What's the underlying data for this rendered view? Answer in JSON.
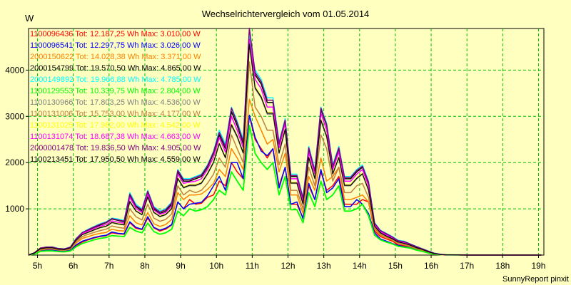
{
  "chart_data": {
    "type": "line",
    "title": "Wechselrichtervergleich vom 01.05.2014",
    "ylabel": "W",
    "footer": "SunnyReport pinxit",
    "x_ticks": [
      "5h",
      "6h",
      "7h",
      "8h",
      "9h",
      "10h",
      "11h",
      "12h",
      "13h",
      "14h",
      "15h",
      "16h",
      "17h",
      "18h",
      "19h"
    ],
    "y_ticks": [
      1000,
      2000,
      3000,
      4000
    ],
    "xlim": [
      4.75,
      19.15
    ],
    "ylim": [
      0,
      4900
    ],
    "grid": true,
    "legend_position": "top-left",
    "x_hours": [
      4.75,
      4.92,
      5.08,
      5.25,
      5.42,
      5.58,
      5.75,
      5.92,
      6.08,
      6.25,
      6.42,
      6.58,
      6.75,
      6.92,
      7.08,
      7.25,
      7.42,
      7.58,
      7.75,
      7.92,
      8.08,
      8.25,
      8.42,
      8.58,
      8.75,
      8.92,
      9.08,
      9.25,
      9.42,
      9.58,
      9.75,
      9.92,
      10.08,
      10.25,
      10.42,
      10.58,
      10.75,
      10.92,
      11.08,
      11.25,
      11.42,
      11.58,
      11.75,
      11.92,
      12.08,
      12.25,
      12.42,
      12.58,
      12.75,
      12.92,
      13.08,
      13.25,
      13.42,
      13.58,
      13.75,
      13.92,
      14.08,
      14.25,
      14.42,
      14.58,
      14.75,
      14.92,
      15.08,
      15.25,
      15.42,
      15.58,
      15.75,
      15.92,
      16.08,
      16.25,
      16.42,
      16.58,
      16.75,
      16.92,
      17.08,
      17.25,
      17.42,
      17.58,
      17.75,
      17.92,
      18.08,
      18.25,
      18.42,
      18.58,
      18.75,
      18.92,
      19.08
    ],
    "series": [
      {
        "name": "1100096436",
        "total": "12.187,25 Wh",
        "max": "3.010,00 W",
        "color": "#ff0000",
        "lw": 1.5,
        "values": [
          0,
          30,
          90,
          110,
          110,
          90,
          80,
          110,
          200,
          280,
          330,
          370,
          400,
          420,
          480,
          460,
          450,
          700,
          580,
          550,
          800,
          590,
          520,
          560,
          650,
          1150,
          1000,
          1200,
          1100,
          1120,
          1250,
          1300,
          1600,
          1500,
          2000,
          1800,
          1650,
          3010,
          2500,
          2300,
          2100,
          2300,
          1500,
          1900,
          1100,
          1100,
          800,
          1500,
          1200,
          1800,
          1400,
          1500,
          1700,
          1100,
          1100,
          1100,
          1200,
          1150,
          520,
          400,
          350,
          300,
          220,
          200,
          170,
          130,
          100,
          60,
          30,
          10,
          5,
          5,
          3,
          2,
          0,
          0,
          0,
          0,
          0,
          0,
          0,
          0,
          0,
          0,
          0,
          0,
          0
        ]
      },
      {
        "name": "1100096541",
        "total": "12.297,75 Wh",
        "max": "3.026,00 W",
        "color": "#0000ff",
        "lw": 1.5,
        "values": [
          0,
          35,
          100,
          110,
          110,
          90,
          80,
          110,
          220,
          300,
          340,
          380,
          410,
          430,
          500,
          470,
          460,
          720,
          600,
          560,
          830,
          600,
          540,
          580,
          660,
          1150,
          1000,
          1100,
          1120,
          1140,
          1280,
          1500,
          1700,
          1400,
          2000,
          2000,
          1650,
          3026,
          2550,
          2250,
          2150,
          2300,
          1450,
          1900,
          1100,
          1150,
          780,
          1550,
          1200,
          1850,
          1350,
          1450,
          1650,
          1050,
          1050,
          1200,
          1100,
          900,
          480,
          350,
          300,
          250,
          210,
          180,
          160,
          120,
          90,
          50,
          20,
          10,
          5,
          5,
          3,
          2,
          0,
          0,
          0,
          0,
          0,
          0,
          0,
          0,
          0,
          0,
          0,
          0,
          0
        ]
      },
      {
        "name": "2000150622",
        "total": "14.028,38 Wh",
        "max": "3.371,00 W",
        "color": "#ff8000",
        "lw": 1.5,
        "values": [
          0,
          40,
          110,
          130,
          130,
          110,
          100,
          130,
          260,
          360,
          400,
          440,
          470,
          490,
          560,
          530,
          520,
          850,
          700,
          650,
          920,
          680,
          620,
          660,
          770,
          1350,
          1200,
          1300,
          1300,
          1320,
          1420,
          1550,
          1850,
          1700,
          2300,
          2100,
          1850,
          3371,
          3000,
          2700,
          2400,
          2500,
          1800,
          2200,
          1300,
          1300,
          900,
          1700,
          1400,
          2100,
          1600,
          1700,
          1900,
          1200,
          1200,
          1250,
          1300,
          1150,
          560,
          430,
          380,
          320,
          250,
          220,
          180,
          140,
          100,
          60,
          30,
          10,
          5,
          5,
          3,
          2,
          0,
          0,
          0,
          0,
          0,
          0,
          0,
          0,
          0,
          0,
          0,
          0,
          0
        ]
      },
      {
        "name": "2000154799",
        "total": "19.570,50 Wh",
        "max": "4.865,00 W",
        "color": "#000000",
        "lw": 1.5,
        "values": [
          0,
          50,
          150,
          170,
          170,
          140,
          130,
          170,
          350,
          480,
          540,
          600,
          650,
          700,
          780,
          750,
          720,
          1300,
          1050,
          950,
          1350,
          1000,
          900,
          950,
          1100,
          1800,
          1600,
          1600,
          1650,
          1700,
          1900,
          2200,
          2600,
          2300,
          3100,
          2800,
          2400,
          4865,
          3900,
          3700,
          3300,
          3300,
          2400,
          2900,
          1700,
          1700,
          1200,
          2300,
          1800,
          3150,
          2800,
          1900,
          2300,
          1650,
          1650,
          1800,
          1900,
          1550,
          680,
          520,
          450,
          380,
          300,
          280,
          230,
          180,
          130,
          80,
          40,
          15,
          5,
          5,
          3,
          2,
          0,
          0,
          0,
          0,
          0,
          0,
          0,
          0,
          0,
          0,
          0,
          0,
          0
        ]
      },
      {
        "name": "2000149892",
        "total": "19.966,88 Wh",
        "max": "4.785,00 W",
        "color": "#00ffff",
        "lw": 1.5,
        "values": [
          0,
          52,
          150,
          175,
          175,
          145,
          135,
          175,
          360,
          490,
          560,
          620,
          680,
          720,
          800,
          780,
          750,
          1350,
          1100,
          1000,
          1400,
          1050,
          950,
          1000,
          1150,
          1850,
          1650,
          1650,
          1700,
          1750,
          1950,
          2250,
          2700,
          2400,
          3200,
          2900,
          2500,
          4785,
          4000,
          3800,
          3400,
          3400,
          2450,
          2950,
          1750,
          1750,
          1250,
          2350,
          1850,
          3200,
          2850,
          1950,
          2350,
          1700,
          1700,
          1850,
          1950,
          1600,
          700,
          540,
          470,
          400,
          320,
          300,
          240,
          190,
          140,
          90,
          45,
          18,
          5,
          5,
          3,
          2,
          0,
          0,
          0,
          0,
          0,
          0,
          0,
          0,
          0,
          0,
          0,
          0,
          0
        ]
      },
      {
        "name": "1100129553",
        "total": "10.339,75 Wh",
        "max": "2.804,00 W",
        "color": "#00ff00",
        "lw": 1.8,
        "values": [
          0,
          25,
          80,
          90,
          90,
          75,
          70,
          90,
          180,
          250,
          290,
          330,
          360,
          380,
          420,
          410,
          400,
          600,
          520,
          480,
          690,
          510,
          450,
          480,
          560,
          950,
          850,
          1000,
          950,
          980,
          1050,
          1200,
          1400,
          1300,
          1800,
          1600,
          1400,
          2804,
          2200,
          2000,
          1850,
          2000,
          1300,
          1700,
          980,
          980,
          700,
          1350,
          1050,
          1600,
          1200,
          1300,
          1500,
          950,
          950,
          1000,
          1100,
          850,
          430,
          330,
          280,
          240,
          190,
          170,
          150,
          110,
          80,
          45,
          20,
          8,
          5,
          4,
          3,
          2,
          0,
          0,
          0,
          0,
          0,
          0,
          0,
          0,
          0,
          0,
          0,
          0,
          0
        ]
      },
      {
        "name": "1100130966",
        "total": "17.803,25 Wh",
        "max": "4.536,00 W",
        "color": "#808080",
        "lw": 1.5,
        "values": [
          0,
          45,
          135,
          155,
          155,
          125,
          115,
          155,
          320,
          440,
          490,
          540,
          590,
          620,
          700,
          670,
          650,
          1150,
          950,
          870,
          1250,
          920,
          830,
          870,
          1000,
          1650,
          1450,
          1500,
          1500,
          1550,
          1750,
          2000,
          2400,
          2100,
          2800,
          2550,
          2200,
          4536,
          3600,
          3400,
          3050,
          3050,
          2200,
          2700,
          1550,
          1550,
          1100,
          2100,
          1650,
          2900,
          2550,
          1750,
          2100,
          1500,
          1500,
          1650,
          1750,
          1400,
          620,
          480,
          410,
          350,
          280,
          250,
          210,
          160,
          120,
          70,
          35,
          12,
          5,
          5,
          3,
          2,
          0,
          0,
          0,
          0,
          0,
          0,
          0,
          0,
          0,
          0,
          0,
          0,
          0
        ]
      },
      {
        "name": "1100131006",
        "total": "15.753,00 Wh",
        "max": "4.177,00 W",
        "color": "#c08040",
        "lw": 1.5,
        "values": [
          0,
          42,
          120,
          140,
          140,
          115,
          105,
          140,
          290,
          400,
          450,
          490,
          530,
          560,
          630,
          600,
          580,
          1000,
          830,
          760,
          1100,
          800,
          730,
          770,
          890,
          1500,
          1300,
          1400,
          1350,
          1400,
          1550,
          1750,
          2100,
          1900,
          2600,
          2300,
          2000,
          4177,
          3200,
          3000,
          2700,
          2700,
          1950,
          2400,
          1400,
          1400,
          1000,
          1900,
          1500,
          2600,
          2300,
          1600,
          1900,
          1350,
          1350,
          1500,
          1550,
          1250,
          590,
          450,
          390,
          330,
          260,
          230,
          190,
          150,
          110,
          65,
          32,
          11,
          5,
          5,
          3,
          2,
          0,
          0,
          0,
          0,
          0,
          0,
          0,
          0,
          0,
          0,
          0,
          0,
          0
        ]
      },
      {
        "name": "1100131025",
        "total": "17.982,00 Wh",
        "max": "4.542,00 W",
        "color": "#ffff00",
        "lw": 1.5,
        "values": [
          0,
          46,
          138,
          158,
          158,
          128,
          118,
          158,
          325,
          445,
          495,
          548,
          598,
          628,
          708,
          678,
          658,
          1165,
          960,
          880,
          1265,
          930,
          840,
          880,
          1010,
          1670,
          1470,
          1520,
          1520,
          1570,
          1770,
          2020,
          2420,
          2120,
          2830,
          2580,
          2220,
          4542,
          3640,
          3430,
          3080,
          3080,
          2220,
          2730,
          1570,
          1570,
          1110,
          2120,
          1670,
          2930,
          2580,
          1770,
          2120,
          1520,
          1520,
          1670,
          1770,
          1420,
          630,
          485,
          415,
          355,
          285,
          255,
          215,
          165,
          122,
          72,
          36,
          13,
          5,
          5,
          3,
          2,
          0,
          0,
          0,
          0,
          0,
          0,
          0,
          0,
          0,
          0,
          0,
          0,
          0
        ]
      },
      {
        "name": "1100131074",
        "total": "18.687,38 Wh",
        "max": "4.663,00 W",
        "color": "#ff00ff",
        "lw": 1.5,
        "values": [
          0,
          48,
          145,
          165,
          165,
          135,
          125,
          165,
          340,
          465,
          520,
          575,
          625,
          660,
          740,
          710,
          690,
          1250,
          1010,
          920,
          1320,
          975,
          880,
          920,
          1060,
          1750,
          1550,
          1580,
          1600,
          1650,
          1850,
          2120,
          2540,
          2230,
          3000,
          2700,
          2320,
          4663,
          3800,
          3600,
          3200,
          3200,
          2320,
          2850,
          1650,
          1650,
          1170,
          2220,
          1750,
          3070,
          2700,
          1850,
          2230,
          1600,
          1600,
          1750,
          1850,
          1500,
          660,
          505,
          435,
          370,
          295,
          265,
          225,
          175,
          128,
          76,
          38,
          14,
          5,
          5,
          3,
          2,
          0,
          0,
          0,
          0,
          0,
          0,
          0,
          0,
          0,
          0,
          0,
          0,
          0
        ]
      },
      {
        "name": "2000001478",
        "total": "19.836,50 Wh",
        "max": "4.905,00 W",
        "color": "#800080",
        "lw": 1.5,
        "values": [
          0,
          52,
          152,
          172,
          172,
          142,
          132,
          172,
          355,
          485,
          550,
          610,
          665,
          710,
          790,
          760,
          735,
          1320,
          1070,
          980,
          1380,
          1030,
          930,
          980,
          1130,
          1830,
          1630,
          1630,
          1680,
          1730,
          1930,
          2230,
          2650,
          2350,
          3180,
          2860,
          2450,
          4905,
          3950,
          3750,
          3350,
          3350,
          2420,
          2920,
          1720,
          1720,
          1230,
          2320,
          1820,
          3180,
          2820,
          1920,
          2320,
          1680,
          1680,
          1830,
          1920,
          1580,
          690,
          530,
          460,
          390,
          310,
          290,
          235,
          185,
          135,
          85,
          42,
          16,
          5,
          5,
          3,
          2,
          0,
          0,
          0,
          0,
          0,
          0,
          0,
          0,
          0,
          0,
          0,
          0,
          0
        ]
      },
      {
        "name": "1100213451",
        "total": "17.950,50 Wh",
        "max": "4.559,00 W",
        "color": "#000000",
        "lw": 1.2,
        "values": [
          0,
          46,
          137,
          157,
          157,
          127,
          117,
          157,
          322,
          442,
          493,
          545,
          595,
          625,
          705,
          675,
          655,
          1160,
          955,
          875,
          1260,
          925,
          835,
          875,
          1005,
          1660,
          1460,
          1510,
          1510,
          1560,
          1760,
          2010,
          2410,
          2110,
          2820,
          2570,
          2210,
          4559,
          3620,
          3420,
          3070,
          3070,
          2210,
          2720,
          1560,
          1560,
          1105,
          2110,
          1660,
          2920,
          2570,
          1760,
          2110,
          1510,
          1510,
          1660,
          1760,
          1410,
          625,
          482,
          412,
          352,
          282,
          252,
          212,
          162,
          121,
          71,
          35,
          12,
          5,
          5,
          3,
          2,
          0,
          0,
          0,
          0,
          0,
          0,
          0,
          0,
          0,
          0,
          0,
          0,
          0
        ]
      }
    ]
  }
}
